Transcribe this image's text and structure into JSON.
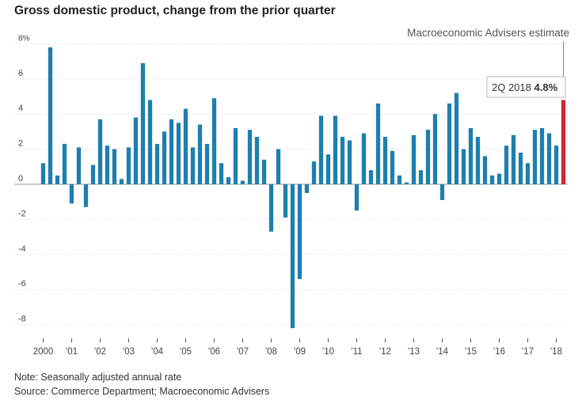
{
  "chart_data": {
    "type": "bar",
    "title": "Gross domestic product, change from the prior quarter",
    "xlabel": "",
    "ylabel": "",
    "ylim": [
      -9,
      8.7
    ],
    "grid": true,
    "y_ticks": [
      {
        "value": 8,
        "label": "8%"
      },
      {
        "value": 6,
        "label": "6"
      },
      {
        "value": 4,
        "label": "4"
      },
      {
        "value": 2,
        "label": "2"
      },
      {
        "value": 0,
        "label": "0"
      },
      {
        "value": -2,
        "label": "-2"
      },
      {
        "value": -4,
        "label": "-4"
      },
      {
        "value": -6,
        "label": "-6"
      },
      {
        "value": -8,
        "label": "-8"
      }
    ],
    "x_tick_labels": [
      "2000",
      "'01",
      "'02",
      "'03",
      "'04",
      "'05",
      "'06",
      "'07",
      "'08",
      "'09",
      "'10",
      "'11",
      "'12",
      "'13",
      "'14",
      "'15",
      "'16",
      "'17",
      "'18"
    ],
    "categories": [
      "1Q 2000",
      "2Q 2000",
      "3Q 2000",
      "4Q 2000",
      "1Q 2001",
      "2Q 2001",
      "3Q 2001",
      "4Q 2001",
      "1Q 2002",
      "2Q 2002",
      "3Q 2002",
      "4Q 2002",
      "1Q 2003",
      "2Q 2003",
      "3Q 2003",
      "4Q 2003",
      "1Q 2004",
      "2Q 2004",
      "3Q 2004",
      "4Q 2004",
      "1Q 2005",
      "2Q 2005",
      "3Q 2005",
      "4Q 2005",
      "1Q 2006",
      "2Q 2006",
      "3Q 2006",
      "4Q 2006",
      "1Q 2007",
      "2Q 2007",
      "3Q 2007",
      "4Q 2007",
      "1Q 2008",
      "2Q 2008",
      "3Q 2008",
      "4Q 2008",
      "1Q 2009",
      "2Q 2009",
      "3Q 2009",
      "4Q 2009",
      "1Q 2010",
      "2Q 2010",
      "3Q 2010",
      "4Q 2010",
      "1Q 2011",
      "2Q 2011",
      "3Q 2011",
      "4Q 2011",
      "1Q 2012",
      "2Q 2012",
      "3Q 2012",
      "4Q 2012",
      "1Q 2013",
      "2Q 2013",
      "3Q 2013",
      "4Q 2013",
      "1Q 2014",
      "2Q 2014",
      "3Q 2014",
      "4Q 2014",
      "1Q 2015",
      "2Q 2015",
      "3Q 2015",
      "4Q 2015",
      "1Q 2016",
      "2Q 2016",
      "3Q 2016",
      "4Q 2016",
      "1Q 2017",
      "2Q 2017",
      "3Q 2017",
      "4Q 2017",
      "1Q 2018",
      "2Q 2018"
    ],
    "values": [
      1.2,
      7.8,
      0.5,
      2.3,
      -1.1,
      2.1,
      -1.3,
      1.1,
      3.7,
      2.2,
      2.0,
      0.3,
      2.1,
      3.8,
      6.9,
      4.8,
      2.3,
      3.0,
      3.7,
      3.5,
      4.3,
      2.1,
      3.4,
      2.3,
      4.9,
      1.2,
      0.4,
      3.2,
      0.2,
      3.1,
      2.7,
      1.4,
      -2.7,
      2.0,
      -1.9,
      -8.2,
      -5.4,
      -0.5,
      1.3,
      3.9,
      1.7,
      3.9,
      2.7,
      2.5,
      -1.5,
      2.9,
      0.8,
      4.6,
      2.7,
      1.9,
      0.5,
      0.1,
      2.8,
      0.8,
      3.1,
      4.0,
      -0.9,
      4.6,
      5.2,
      2.0,
      3.2,
      2.7,
      1.6,
      0.5,
      0.6,
      2.2,
      2.8,
      1.8,
      1.2,
      3.1,
      3.2,
      2.9,
      2.2,
      4.8
    ],
    "bar_color": "#1e7fad",
    "highlight_index": 73,
    "highlight_color": "#d0282f",
    "annotation": {
      "label": "Macroeconomic Advisers estimate",
      "callout_period": "2Q 2018",
      "callout_value": "4.8%"
    },
    "notes": [
      "Note: Seasonally adjusted annual rate",
      "Source: Commerce Department; Macroeconomic Advisers"
    ]
  }
}
